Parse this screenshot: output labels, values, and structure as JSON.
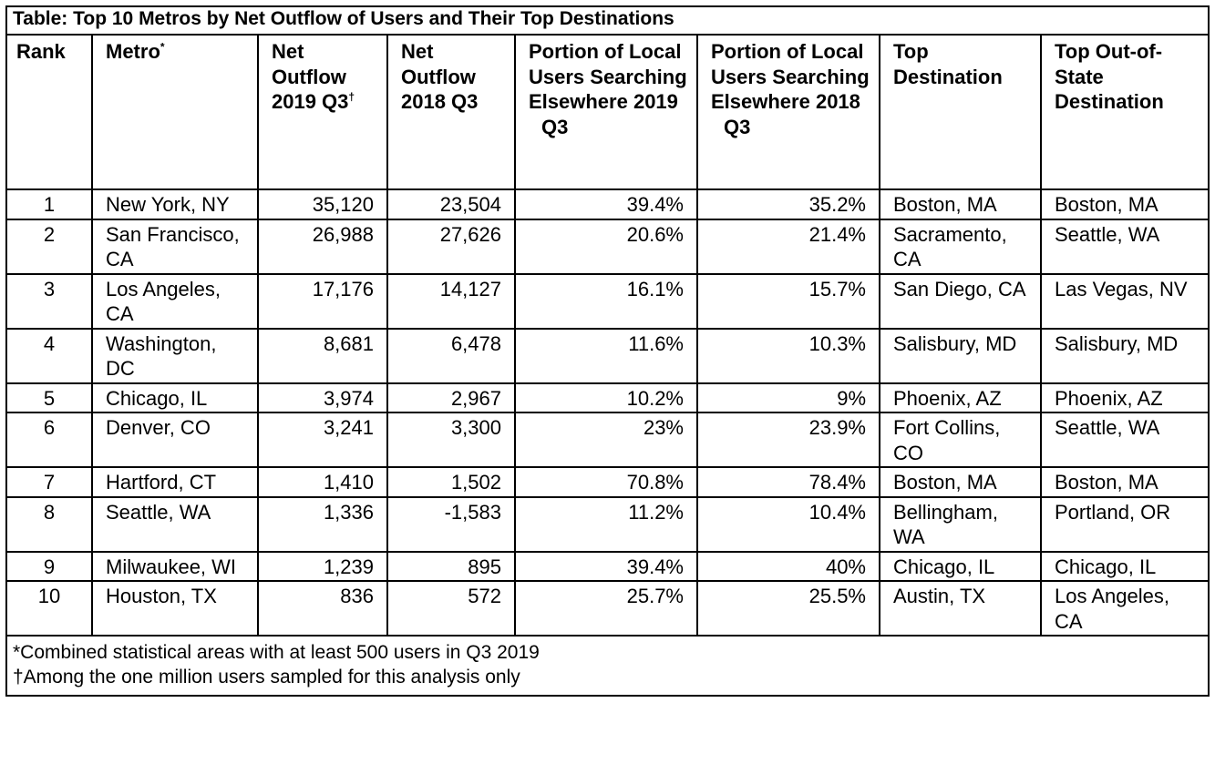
{
  "table": {
    "title": "Table: Top 10 Metros by Net Outflow of Users and Their Top Destinations",
    "headers": {
      "rank": "Rank",
      "metro": "Metro",
      "metro_mark": "*",
      "net_2019": "Net Outflow 2019 Q3",
      "net_2019_mark": "†",
      "net_2018": "Net Outflow 2018 Q3",
      "portion_2019": "Portion of Local Users Searching Elsewhere 2019",
      "portion_2019_q": "Q3",
      "portion_2018": "Portion of Local Users Searching Elsewhere 2018",
      "portion_2018_q": "Q3",
      "top_dest": "Top Destination",
      "top_oos": "Top Out-of-State Destination"
    },
    "rows": [
      {
        "rank": "1",
        "metro": "New York, NY",
        "net_2019": "35,120",
        "net_2018": "23,504",
        "portion_2019": "39.4%",
        "portion_2018": "35.2%",
        "top_dest": "Boston, MA",
        "top_oos": "Boston, MA"
      },
      {
        "rank": "2",
        "metro": "San Francisco, CA",
        "net_2019": "26,988",
        "net_2018": "27,626",
        "portion_2019": "20.6%",
        "portion_2018": "21.4%",
        "top_dest": "Sacramento, CA",
        "top_oos": "Seattle, WA"
      },
      {
        "rank": "3",
        "metro": "Los Angeles, CA",
        "net_2019": "17,176",
        "net_2018": "14,127",
        "portion_2019": "16.1%",
        "portion_2018": "15.7%",
        "top_dest": "San Diego, CA",
        "top_oos": "Las Vegas, NV"
      },
      {
        "rank": "4",
        "metro": "Washington, DC",
        "net_2019": "8,681",
        "net_2018": "6,478",
        "portion_2019": "11.6%",
        "portion_2018": "10.3%",
        "top_dest": "Salisbury, MD",
        "top_oos": "Salisbury, MD"
      },
      {
        "rank": "5",
        "metro": "Chicago, IL",
        "net_2019": "3,974",
        "net_2018": "2,967",
        "portion_2019": "10.2%",
        "portion_2018": "9%",
        "top_dest": "Phoenix, AZ",
        "top_oos": "Phoenix, AZ"
      },
      {
        "rank": "6",
        "metro": "Denver, CO",
        "net_2019": "3,241",
        "net_2018": "3,300",
        "portion_2019": "23%",
        "portion_2018": "23.9%",
        "top_dest": "Fort Collins, CO",
        "top_oos": "Seattle, WA"
      },
      {
        "rank": "7",
        "metro": "Hartford, CT",
        "net_2019": "1,410",
        "net_2018": "1,502",
        "portion_2019": "70.8%",
        "portion_2018": "78.4%",
        "top_dest": "Boston, MA",
        "top_oos": "Boston, MA"
      },
      {
        "rank": "8",
        "metro": "Seattle, WA",
        "net_2019": "1,336",
        "net_2018": "-1,583",
        "portion_2019": "11.2%",
        "portion_2018": "10.4%",
        "top_dest": "Bellingham, WA",
        "top_oos": "Portland, OR"
      },
      {
        "rank": "9",
        "metro": "Milwaukee, WI",
        "net_2019": "1,239",
        "net_2018": "895",
        "portion_2019": "39.4%",
        "portion_2018": "40%",
        "top_dest": "Chicago, IL",
        "top_oos": "Chicago, IL"
      },
      {
        "rank": "10",
        "metro": "Houston, TX",
        "net_2019": "836",
        "net_2018": "572",
        "portion_2019": "25.7%",
        "portion_2018": "25.5%",
        "top_dest": "Austin, TX",
        "top_oos": "Los Angeles, CA"
      }
    ],
    "footnotes": [
      "*Combined statistical areas with at least 500 users in Q3 2019",
      "†Among the one million users sampled for this analysis only"
    ]
  }
}
